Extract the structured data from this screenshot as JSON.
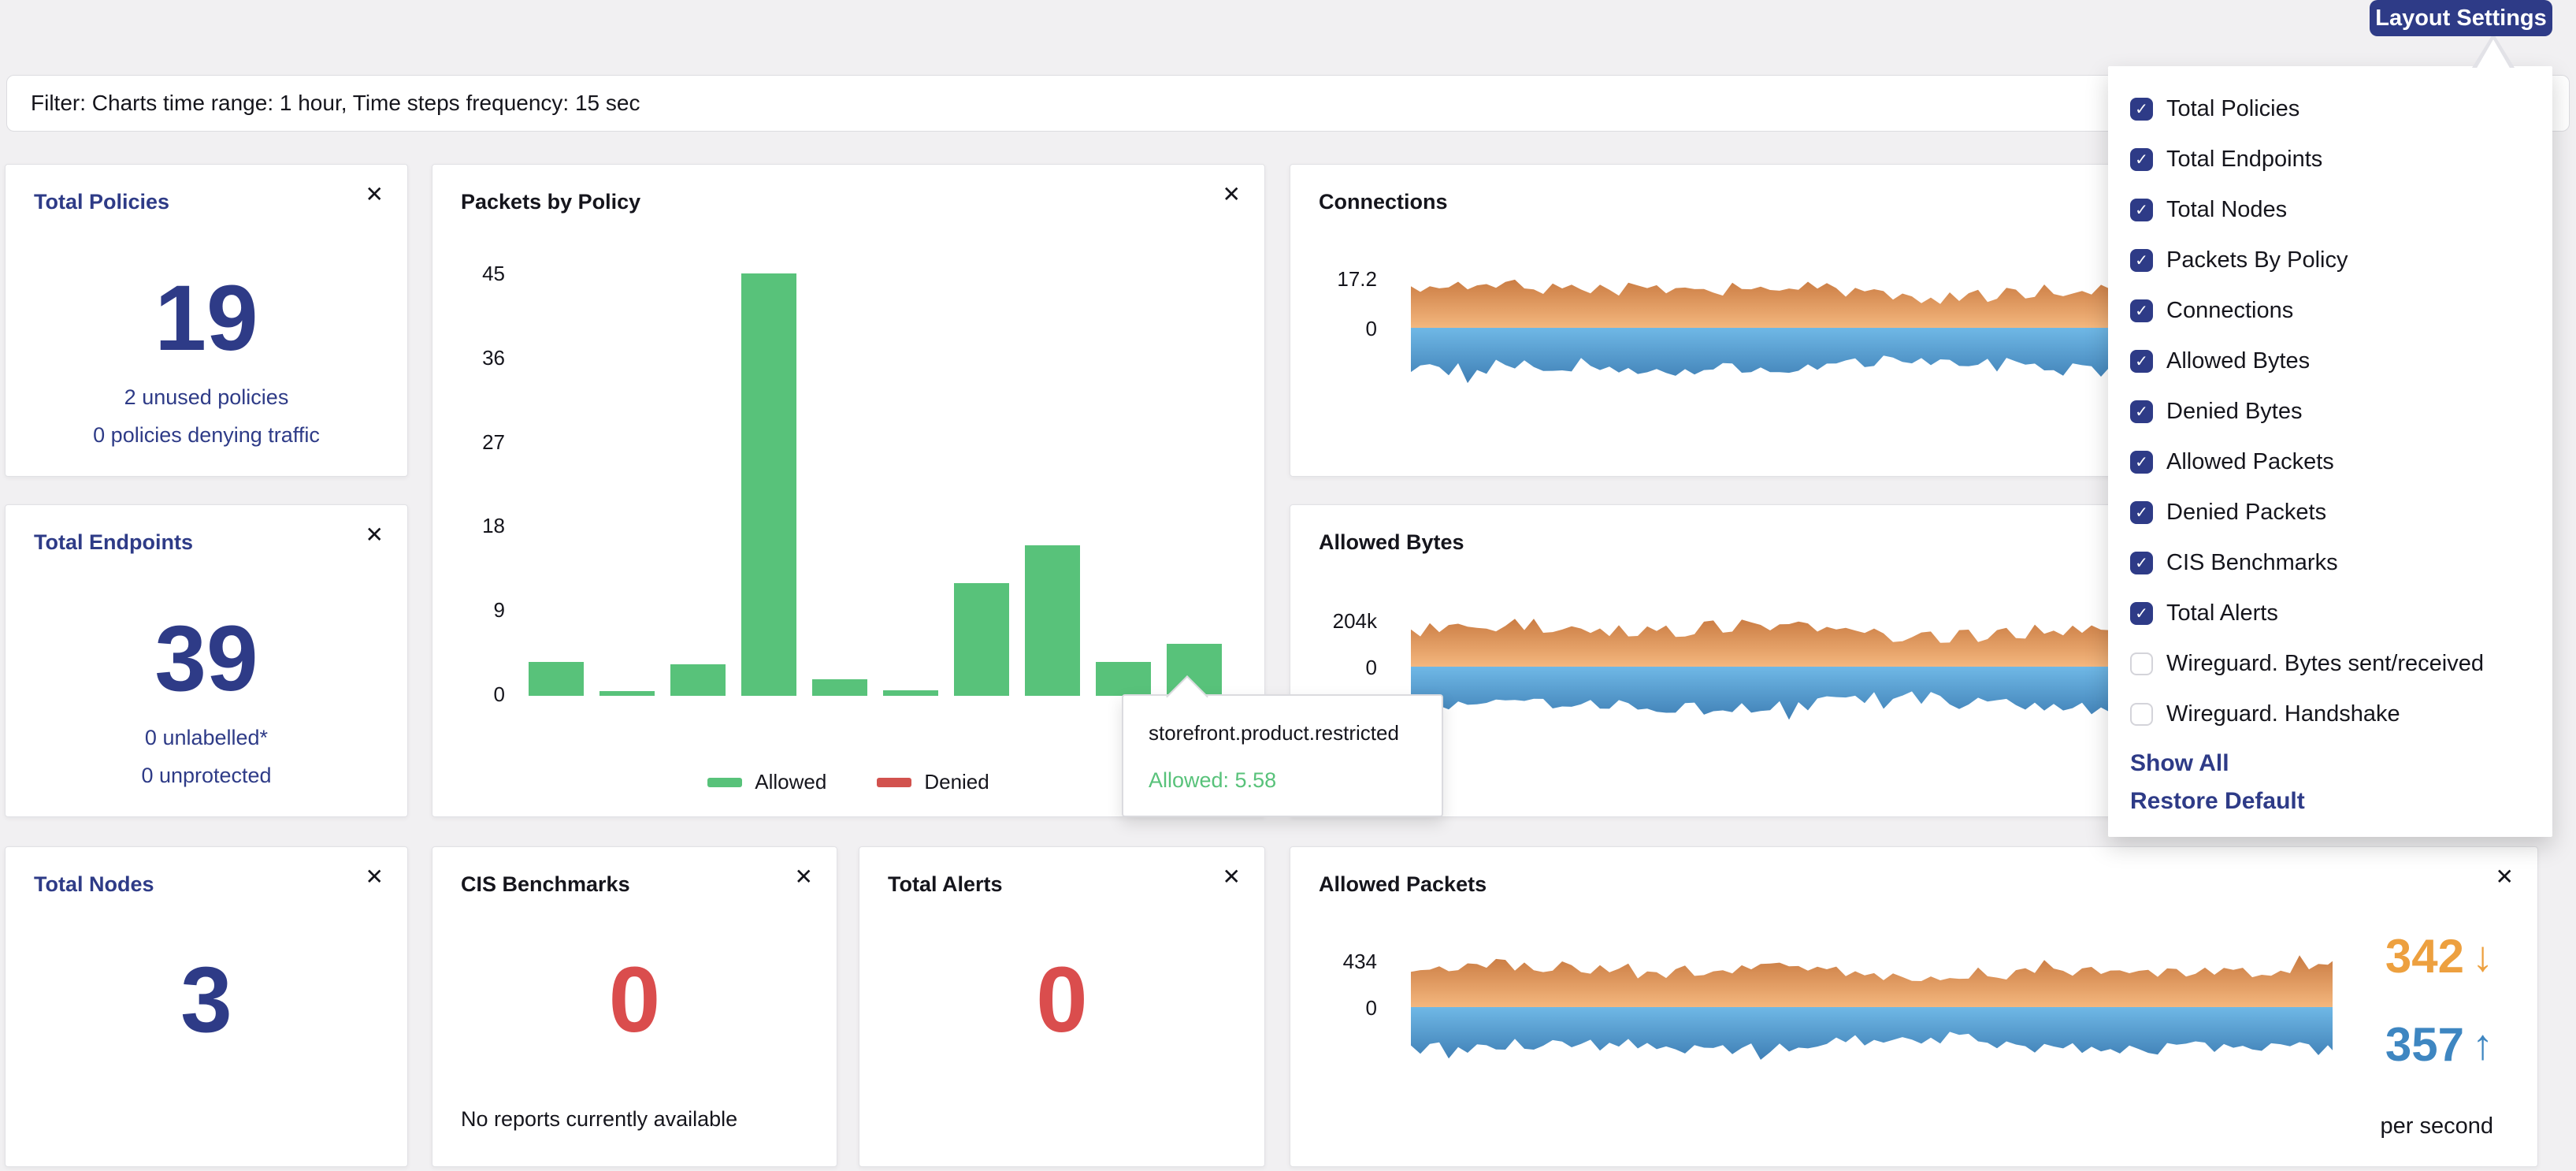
{
  "icons": {
    "close": "✕",
    "check": "✓",
    "arrow_down": "↓",
    "arrow_up": "↑"
  },
  "colors": {
    "navy": "#2e3b87",
    "green": "#58c27a",
    "red": "#da4d4d",
    "orange": "#eda03f",
    "blue": "#3e86c1",
    "stream_orange_dark": "#c97a41",
    "stream_orange_light": "#f4b77e",
    "stream_blue_light": "#6fb8e6",
    "stream_blue_dark": "#3f7fb5"
  },
  "header": {
    "layout_settings_label": "Layout Settings"
  },
  "filter_bar": {
    "text": "Filter: Charts time range: 1 hour, Time steps frequency: 15 sec"
  },
  "cards": {
    "total_policies": {
      "title": "Total Policies",
      "value": "19",
      "lines": [
        "2 unused policies",
        "0 policies denying traffic"
      ]
    },
    "total_endpoints": {
      "title": "Total Endpoints",
      "value": "39",
      "lines": [
        "0 unlabelled*",
        "0 unprotected"
      ]
    },
    "total_nodes": {
      "title": "Total Nodes",
      "value": "3"
    },
    "packets_by_policy": {
      "title": "Packets by Policy"
    },
    "connections": {
      "title": "Connections",
      "y_ticks": [
        "17.2",
        "0"
      ]
    },
    "allowed_bytes": {
      "title": "Allowed Bytes",
      "y_ticks": [
        "204k",
        "0"
      ]
    },
    "cis_benchmarks": {
      "title": "CIS Benchmarks",
      "value": "0",
      "note": "No reports currently available"
    },
    "total_alerts": {
      "title": "Total Alerts",
      "value": "0"
    },
    "allowed_packets": {
      "title": "Allowed Packets",
      "y_ticks": [
        "434",
        "0"
      ],
      "stats": {
        "down": "342",
        "up": "357",
        "unit": "per second"
      }
    }
  },
  "tooltip": {
    "title": "storefront.product.restricted",
    "value_label": "Allowed: 5.58"
  },
  "dropdown": {
    "items": [
      {
        "id": "total-policies",
        "label": "Total Policies",
        "checked": true
      },
      {
        "id": "total-endpoints",
        "label": "Total Endpoints",
        "checked": true
      },
      {
        "id": "total-nodes",
        "label": "Total Nodes",
        "checked": true
      },
      {
        "id": "packets-by-policy",
        "label": "Packets By Policy",
        "checked": true
      },
      {
        "id": "connections",
        "label": "Connections",
        "checked": true
      },
      {
        "id": "allowed-bytes",
        "label": "Allowed Bytes",
        "checked": true
      },
      {
        "id": "denied-bytes",
        "label": "Denied Bytes",
        "checked": true
      },
      {
        "id": "allowed-packets",
        "label": "Allowed Packets",
        "checked": true
      },
      {
        "id": "denied-packets",
        "label": "Denied Packets",
        "checked": true
      },
      {
        "id": "cis-benchmarks",
        "label": "CIS Benchmarks",
        "checked": true
      },
      {
        "id": "total-alerts",
        "label": "Total Alerts",
        "checked": true
      },
      {
        "id": "wireguard-bytes",
        "label": "Wireguard. Bytes sent/received",
        "checked": false
      },
      {
        "id": "wireguard-handshake",
        "label": "Wireguard. Handshake",
        "checked": false
      }
    ],
    "show_all_label": "Show All",
    "restore_default_label": "Restore Default"
  },
  "chart_data": [
    {
      "type": "bar",
      "title": "Packets by Policy",
      "categories": [
        "",
        "",
        "",
        "",
        "",
        "",
        "",
        "",
        "",
        "storefront.product.restricted"
      ],
      "series": [
        {
          "name": "Allowed",
          "color": "#58c27a",
          "values": [
            3.6,
            0.5,
            3.4,
            45,
            1.8,
            0.6,
            12,
            16,
            3.6,
            5.58
          ]
        },
        {
          "name": "Denied",
          "color": "#d2524e",
          "values": [
            0,
            0,
            0,
            0,
            0,
            0,
            0,
            0,
            0,
            0
          ]
        }
      ],
      "yticks": [
        45,
        36,
        27,
        18,
        9,
        0
      ],
      "ylim": [
        0,
        45
      ],
      "legend": [
        "Allowed",
        "Denied"
      ],
      "legend_position": "bottom",
      "grid": false,
      "hovered": {
        "category": "storefront.product.restricted",
        "series": "Allowed",
        "value": 5.58
      }
    },
    {
      "type": "area",
      "style": "mirrored-stream",
      "title": "Connections",
      "yticks": [
        "17.2",
        "0"
      ],
      "upper_color": "orange",
      "lower_color": "blue"
    },
    {
      "type": "area",
      "style": "mirrored-stream",
      "title": "Allowed Bytes",
      "yticks": [
        "204k",
        "0"
      ],
      "upper_color": "orange",
      "lower_color": "blue"
    },
    {
      "type": "area",
      "style": "mirrored-stream",
      "title": "Allowed Packets",
      "yticks": [
        "434",
        "0"
      ],
      "upper_color": "orange",
      "lower_color": "blue",
      "stats": {
        "received_per_second": 342,
        "sent_per_second": 357,
        "unit": "per second"
      }
    }
  ]
}
